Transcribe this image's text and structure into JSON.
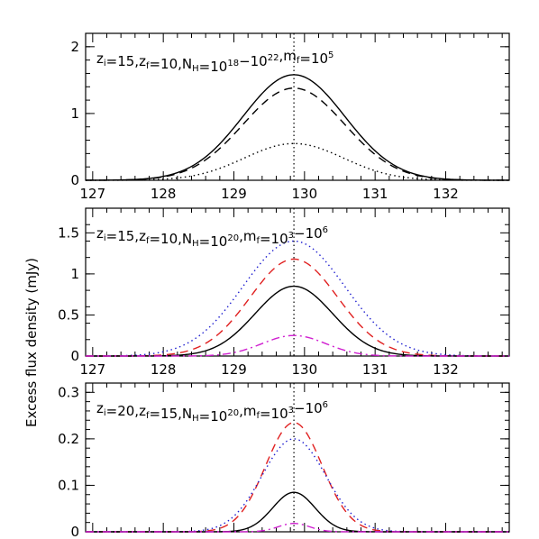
{
  "ylabel": "Excess flux density (mJy)",
  "chart_data": [
    {
      "type": "line",
      "label": {
        "zi": "15",
        "zf": "10",
        "nh": "10",
        "nh_exp": "18",
        "dash": "−10",
        "nh_exp2": "22",
        "mf": "10",
        "mf_exp": "5"
      },
      "xlim": [
        126.9,
        132.9
      ],
      "ylim": [
        0,
        2.2
      ],
      "x_ticks": [
        "127",
        "128",
        "129",
        "130",
        "131",
        "132"
      ],
      "y_ticks": [
        {
          "value": 0,
          "label": "0"
        },
        {
          "value": 1,
          "label": "1"
        },
        {
          "value": 2,
          "label": "2"
        }
      ],
      "vline": 129.85,
      "series": [
        {
          "style": "solid",
          "color": "#000000",
          "peak": 1.58,
          "center": 129.85,
          "sigma": 0.72
        },
        {
          "style": "dashed",
          "color": "#000000",
          "peak": 1.38,
          "center": 129.85,
          "sigma": 0.72
        },
        {
          "style": "dotted",
          "color": "#000000",
          "peak": 0.55,
          "center": 129.85,
          "sigma": 0.7
        }
      ]
    },
    {
      "type": "line",
      "label": {
        "zi": "15",
        "zf": "10",
        "nh": "10",
        "nh_exp": "20",
        "mf": "10",
        "mf_exp": "3",
        "dash": "−10",
        "mf_exp2": "6"
      },
      "xlim": [
        126.9,
        132.9
      ],
      "ylim": [
        0,
        1.8
      ],
      "x_ticks": [
        "127",
        "128",
        "129",
        "130",
        "131",
        "132"
      ],
      "y_ticks": [
        {
          "value": 0,
          "label": "0"
        },
        {
          "value": 0.5,
          "label": "0.5"
        },
        {
          "value": 1,
          "label": "1"
        },
        {
          "value": 1.5,
          "label": "1.5"
        }
      ],
      "vline": 129.85,
      "series": [
        {
          "style": "dotted",
          "color": "#1f1fd0",
          "peak": 1.4,
          "center": 129.85,
          "sigma": 0.72
        },
        {
          "style": "dashed",
          "color": "#e02020",
          "peak": 1.18,
          "center": 129.85,
          "sigma": 0.62
        },
        {
          "style": "solid",
          "color": "#000000",
          "peak": 0.85,
          "center": 129.85,
          "sigma": 0.55
        },
        {
          "style": "dashdot",
          "color": "#d020d0",
          "peak": 0.25,
          "center": 129.85,
          "sigma": 0.45
        }
      ]
    },
    {
      "type": "line",
      "label": {
        "zi": "20",
        "zf": "15",
        "nh": "10",
        "nh_exp": "20",
        "mf": "10",
        "mf_exp": "3",
        "dash": "−10",
        "mf_exp2": "6"
      },
      "xlim": [
        126.9,
        132.9
      ],
      "ylim": [
        0,
        0.32
      ],
      "x_ticks": [],
      "y_ticks": [
        {
          "value": 0,
          "label": "0"
        },
        {
          "value": 0.1,
          "label": "0.1"
        },
        {
          "value": 0.2,
          "label": "0.2"
        },
        {
          "value": 0.3,
          "label": "0.3"
        }
      ],
      "vline": 129.85,
      "series": [
        {
          "style": "dashed",
          "color": "#e02020",
          "peak": 0.235,
          "center": 129.85,
          "sigma": 0.4
        },
        {
          "style": "dotted",
          "color": "#1f1fd0",
          "peak": 0.2,
          "center": 129.85,
          "sigma": 0.45
        },
        {
          "style": "solid",
          "color": "#000000",
          "peak": 0.085,
          "center": 129.85,
          "sigma": 0.3
        },
        {
          "style": "dashdot",
          "color": "#d020d0",
          "peak": 0.018,
          "center": 129.85,
          "sigma": 0.22
        }
      ]
    }
  ]
}
